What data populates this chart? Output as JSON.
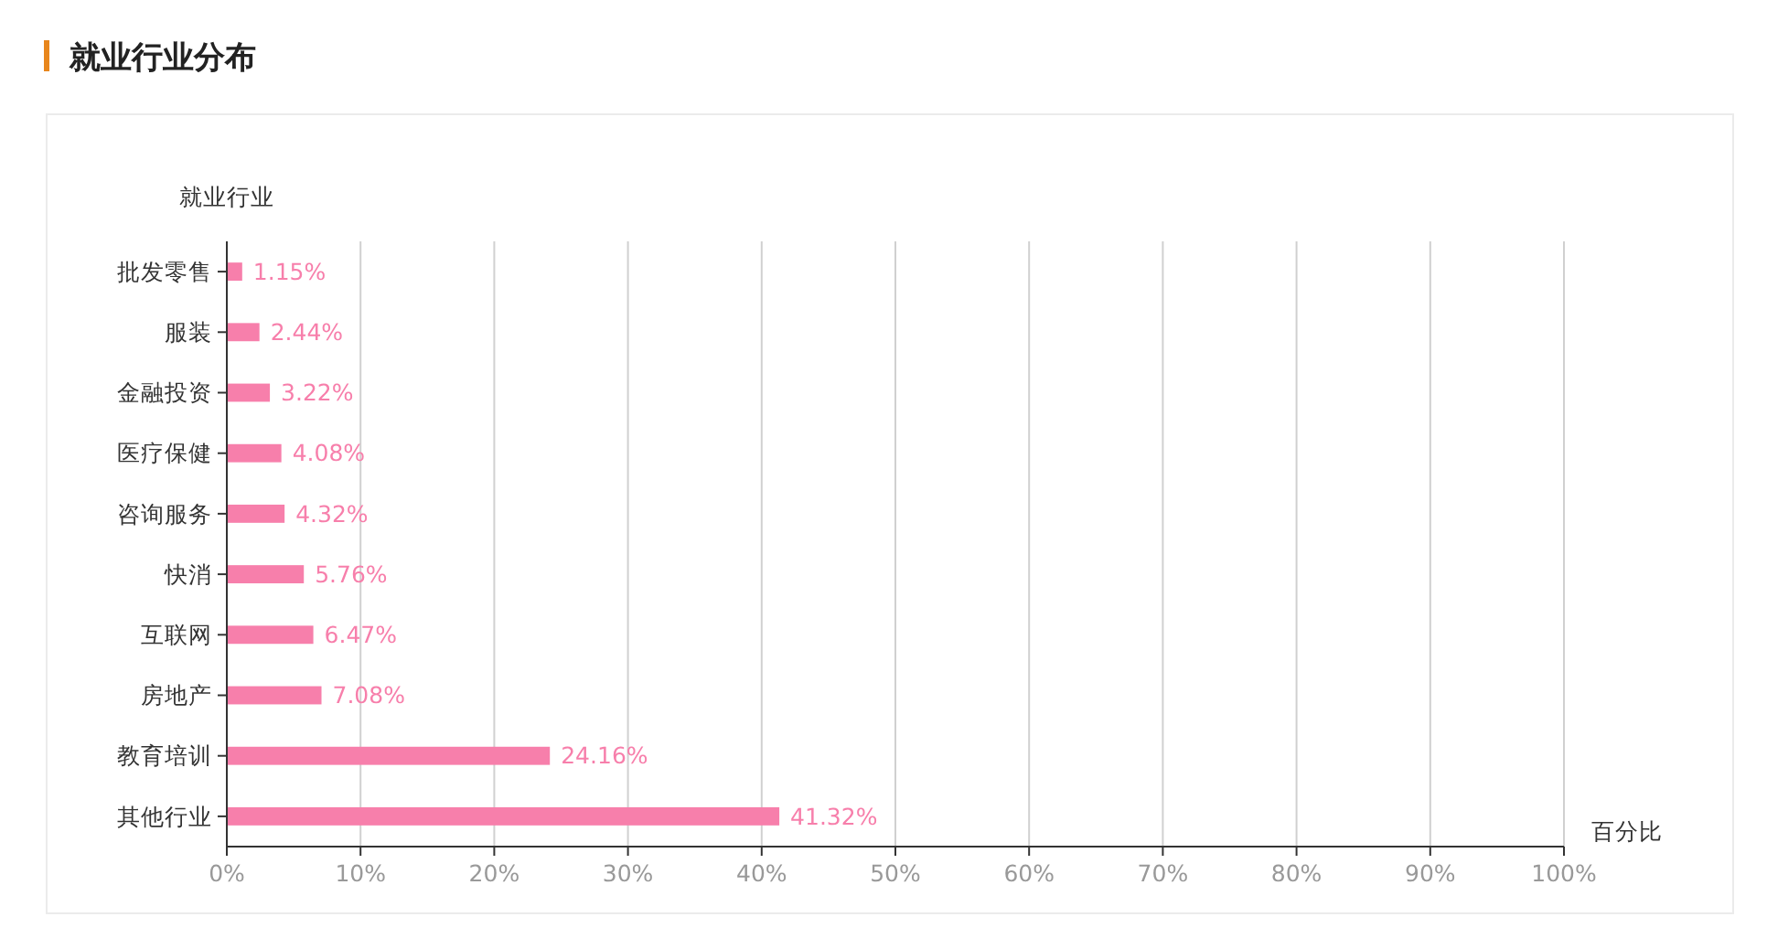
{
  "chart_data": {
    "type": "bar",
    "orientation": "horizontal",
    "title": "就业行业分布",
    "ylabel": "就业行业",
    "xlabel": "百分比",
    "categories": [
      "批发零售",
      "服装",
      "金融投资",
      "医疗保健",
      "咨询服务",
      "快消",
      "互联网",
      "房地产",
      "教育培训",
      "其他行业"
    ],
    "values": [
      1.15,
      2.44,
      3.22,
      4.08,
      4.32,
      5.76,
      6.47,
      7.08,
      24.16,
      41.32
    ],
    "value_labels": [
      "1.15%",
      "2.44%",
      "3.22%",
      "4.08%",
      "4.32%",
      "5.76%",
      "6.47%",
      "7.08%",
      "24.16%",
      "41.32%"
    ],
    "color": "#f77fab",
    "xlim": [
      0,
      100
    ],
    "xticks": [
      {
        "value": 0,
        "label": "0%"
      },
      {
        "value": 10,
        "label": "10%"
      },
      {
        "value": 20,
        "label": "20%"
      },
      {
        "value": 30,
        "label": "30%"
      },
      {
        "value": 40,
        "label": "40%"
      },
      {
        "value": 50,
        "label": "50%"
      },
      {
        "value": 60,
        "label": "60%"
      },
      {
        "value": 70,
        "label": "70%"
      },
      {
        "value": 80,
        "label": "80%"
      },
      {
        "value": 90,
        "label": "90%"
      },
      {
        "value": 100,
        "label": "100%"
      }
    ],
    "grid": "x"
  }
}
